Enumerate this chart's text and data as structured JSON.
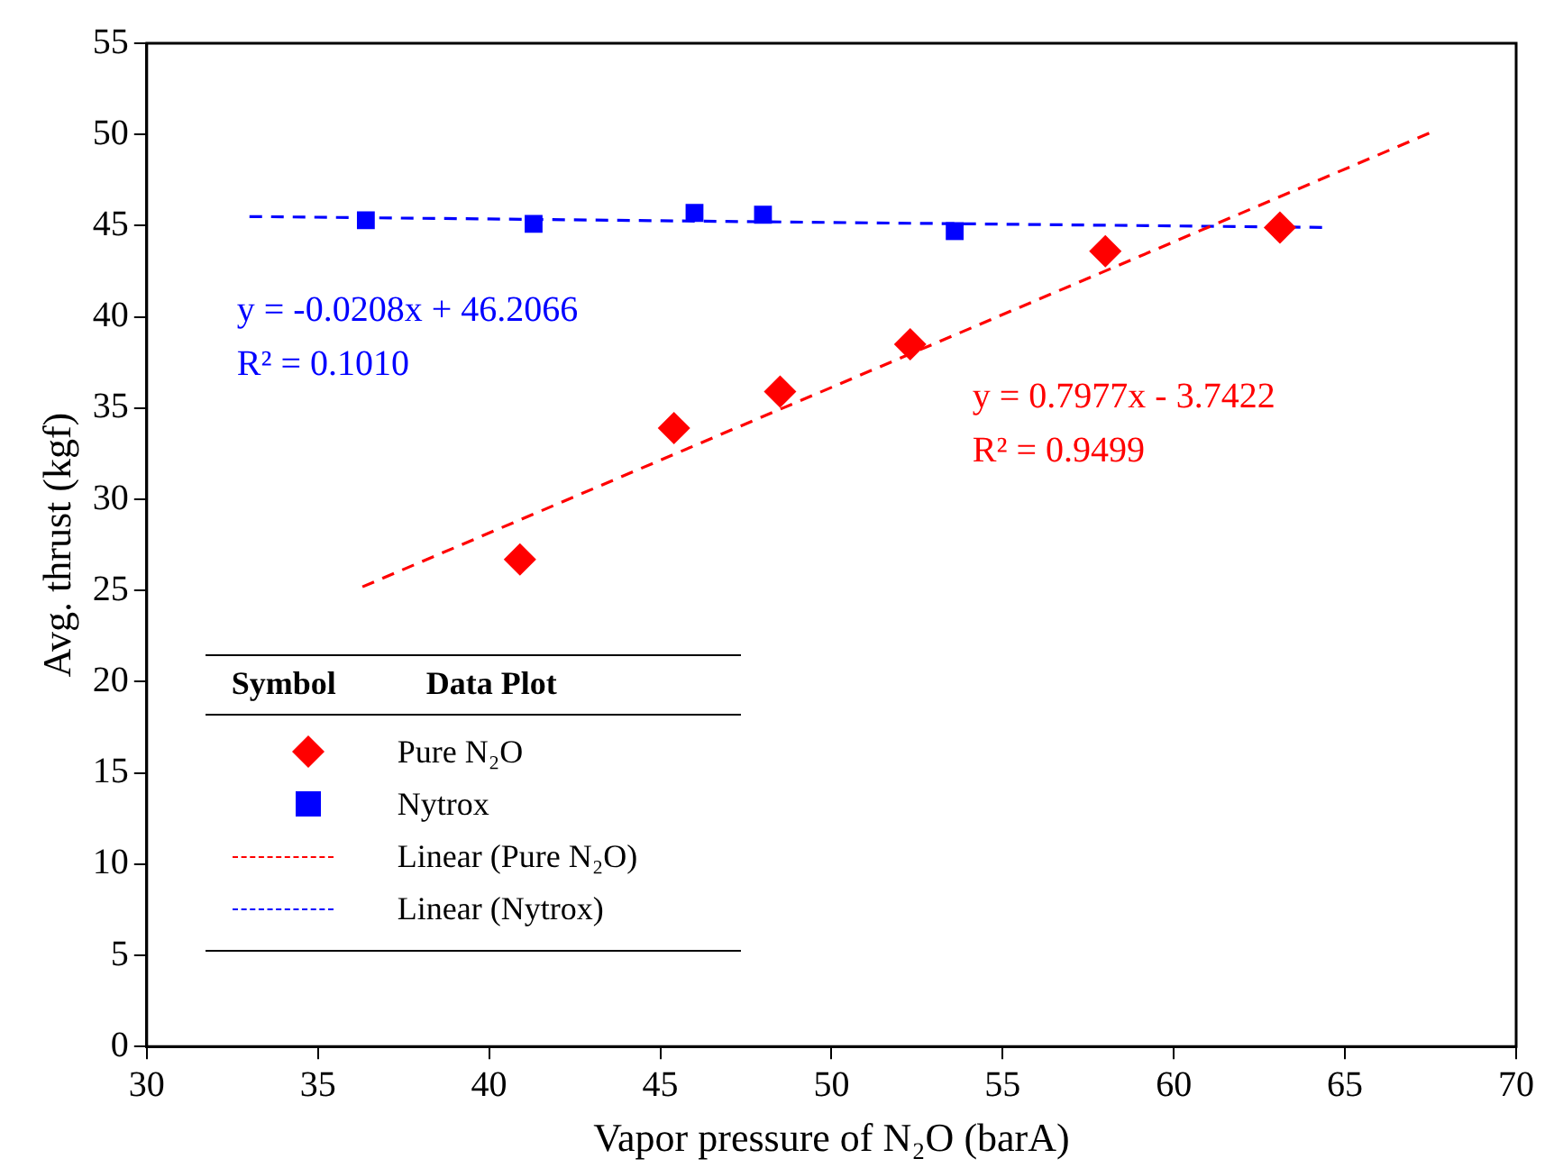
{
  "chart_data": {
    "type": "scatter",
    "xlabel": "Vapor pressure of N₂O (barA)",
    "ylabel": "Avg. thrust (kgf)",
    "xlim": [
      30,
      70
    ],
    "xticks": [
      30,
      35,
      40,
      45,
      50,
      55,
      60,
      65,
      70
    ],
    "ylim": [
      0,
      55
    ],
    "yticks": [
      0,
      5,
      10,
      15,
      20,
      25,
      30,
      35,
      40,
      45,
      50,
      55
    ],
    "grid": false,
    "legend": "bottom left",
    "legend_title": "Symbol",
    "series": [
      {
        "name": "Pure N₂O",
        "marker": "diamond",
        "color": "#ff0000",
        "x": [
          40.9,
          45.4,
          48.5,
          52.3,
          58.0,
          63.1
        ],
        "values": [
          26.7,
          33.9,
          35.9,
          38.5,
          43.6,
          44.9
        ]
      },
      {
        "name": "Nytrox",
        "marker": "square",
        "color": "#0000ff",
        "x": [
          36.4,
          41.3,
          46.0,
          48.0,
          53.6
        ],
        "values": [
          45.3,
          45.1,
          45.7,
          45.6,
          44.7
        ]
      },
      {
        "name": "Linear (Pure N₂O)",
        "type": "line",
        "line_style": "dashed",
        "color": "#ff0000",
        "x": [
          36.3,
          67.5
        ],
        "values": [
          25.2,
          50.1
        ]
      },
      {
        "name": "Linear (Nytrox)",
        "type": "line",
        "line_style": "dashed",
        "color": "#0000ff",
        "x": [
          33,
          64.5
        ],
        "values": [
          45.5,
          44.9
        ]
      }
    ],
    "annotations": [
      "Data Plot",
      "y = -0.0208x + 46.2066",
      "R² = 0.1010",
      "y = 0.7977x - 3.7422",
      "R² = 0.9499"
    ]
  }
}
